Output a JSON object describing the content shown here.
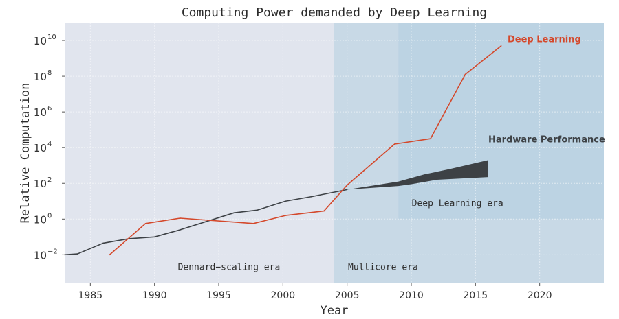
{
  "chart_data": {
    "type": "line",
    "title": "Computing Power demanded by Deep Learning",
    "xlabel": "Year",
    "ylabel": "Relative Computation",
    "yscale": "log",
    "xlim": [
      1983,
      2025
    ],
    "ylim_log10": [
      -3.6,
      11
    ],
    "grid": true,
    "x_ticks": [
      1985,
      1990,
      1995,
      2000,
      2005,
      2010,
      2015,
      2020
    ],
    "y_ticks": [
      {
        "exp": -2,
        "base": "10",
        "sup": "−2"
      },
      {
        "exp": 0,
        "base": "10",
        "sup": "0"
      },
      {
        "exp": 2,
        "base": "10",
        "sup": "2"
      },
      {
        "exp": 4,
        "base": "10",
        "sup": "4"
      },
      {
        "exp": 6,
        "base": "10",
        "sup": "6"
      },
      {
        "exp": 8,
        "base": "10",
        "sup": "8"
      },
      {
        "exp": 10,
        "base": "10",
        "sup": "10"
      }
    ],
    "regions": [
      {
        "name": "Dennard-scaling era",
        "label": "Dennard−scaling era",
        "x": [
          1983,
          2004
        ],
        "y_log10": [
          -3.6,
          11
        ],
        "color": "#e1e5ee"
      },
      {
        "name": "Multicore era",
        "label": "Multicore era",
        "x": [
          2004,
          2025
        ],
        "y_log10": [
          -3.6,
          11
        ],
        "color": "#c8d9e6"
      },
      {
        "name": "Deep Learning era",
        "label": "Deep Learning era",
        "x": [
          2009,
          2025
        ],
        "y_log10": [
          0,
          11
        ],
        "color": "#bcd3e3"
      }
    ],
    "series": [
      {
        "name": "Hardware Performance",
        "label": "Hardware Performance",
        "color": "#3d4145",
        "points_log10": [
          [
            1983,
            -2.0
          ],
          [
            1984,
            -1.95
          ],
          [
            1986,
            -1.35
          ],
          [
            1988,
            -1.1
          ],
          [
            1990,
            -1.0
          ],
          [
            1992,
            -0.6
          ],
          [
            1996.2,
            0.35
          ],
          [
            1998,
            0.5
          ],
          [
            2000.2,
            1.0
          ],
          [
            2002.2,
            1.25
          ],
          [
            2005,
            1.65
          ]
        ],
        "band_upper_log10": [
          [
            2005,
            1.65
          ],
          [
            2009,
            2.1
          ],
          [
            2011,
            2.5
          ],
          [
            2013,
            2.8
          ],
          [
            2016,
            3.3
          ]
        ],
        "band_lower_log10": [
          [
            2005,
            1.65
          ],
          [
            2009,
            1.85
          ],
          [
            2010,
            1.95
          ],
          [
            2012,
            2.2
          ],
          [
            2016,
            2.35
          ]
        ]
      },
      {
        "name": "Deep Learning",
        "label": "Deep Learning",
        "color": "#d4482b",
        "points_log10": [
          [
            1986.5,
            -2.0
          ],
          [
            1989.3,
            -0.25
          ],
          [
            1992,
            0.05
          ],
          [
            1997.7,
            -0.25
          ],
          [
            2000.2,
            0.2
          ],
          [
            2003.2,
            0.45
          ],
          [
            2005,
            1.9
          ],
          [
            2008.7,
            4.2
          ],
          [
            2011.5,
            4.5
          ],
          [
            2014.2,
            8.1
          ],
          [
            2017,
            9.7
          ]
        ]
      }
    ],
    "annotations": [
      {
        "text": "Deep Learning",
        "x": 2017.5,
        "y_log10": 9.9,
        "color": "#d4482b"
      },
      {
        "text": "Hardware Performance",
        "x": 2016,
        "y_log10": 4.3,
        "color": "#3d4145"
      }
    ]
  }
}
